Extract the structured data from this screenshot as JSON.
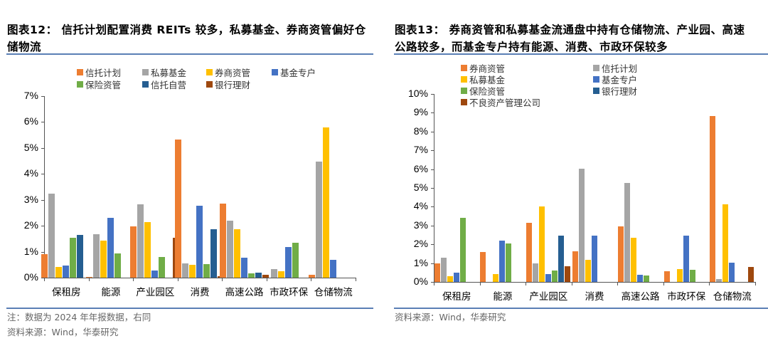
{
  "left": {
    "title_line1": "图表12： 信托计划配置消费 REITs 较多，私募基金、券商资管偏好仓",
    "title_line2": "储物流",
    "note": "注：数据为 2024 年年报数据，右同",
    "source": "资料来源：Wind，华泰研究"
  },
  "right": {
    "title_line1": "图表13： 券商资管和私募基金流通盘中持有仓储物流、产业园、高速",
    "title_line2": "公路较多，而基金专户持有能源、消费、市政环保较多",
    "source": "资料来源：Wind，华泰研究"
  },
  "colors": {
    "orange": "#ED7D31",
    "gray": "#A5A5A5",
    "yellow": "#FFC000",
    "blue": "#4472C4",
    "green": "#70AD47",
    "darkblue": "#255E91",
    "brown": "#9E480E",
    "rule": "#5A7FB5"
  },
  "chart_data": [
    {
      "type": "bar",
      "title": "图表12： 信托计划配置消费 REITs 较多，私募基金、券商资管偏好仓储物流",
      "xlabel": "",
      "ylabel": "",
      "ylim": [
        0,
        7
      ],
      "yticks": [
        "0%",
        "1%",
        "2%",
        "3%",
        "4%",
        "5%",
        "6%",
        "7%"
      ],
      "legend_position": "top",
      "categories": [
        "保租房",
        "能源",
        "产业园区",
        "消费",
        "高速公路",
        "市政环保",
        "仓储物流"
      ],
      "series": [
        {
          "name": "信托计划",
          "color": "#ED7D31",
          "values": [
            0.9,
            0.02,
            1.98,
            5.32,
            2.85,
            0.0,
            0.1
          ]
        },
        {
          "name": "私募基金",
          "color": "#A5A5A5",
          "values": [
            3.25,
            1.67,
            2.82,
            0.55,
            2.2,
            0.33,
            4.48
          ]
        },
        {
          "name": "券商资管",
          "color": "#FFC000",
          "values": [
            0.42,
            1.42,
            2.14,
            0.5,
            1.88,
            0.25,
            5.78
          ]
        },
        {
          "name": "基金专户",
          "color": "#4472C4",
          "values": [
            0.46,
            2.3,
            0.27,
            2.78,
            0.78,
            1.17,
            0.68
          ]
        },
        {
          "name": "保险资管",
          "color": "#70AD47",
          "values": [
            1.55,
            0.93,
            0.79,
            0.52,
            0.17,
            1.34,
            0.0
          ]
        },
        {
          "name": "信托自营",
          "color": "#255E91",
          "values": [
            1.64,
            0.0,
            0.0,
            1.86,
            0.2,
            0.0,
            0.0
          ]
        },
        {
          "name": "银行理财",
          "color": "#9E480E",
          "values": [
            0.0,
            0.0,
            1.55,
            0.05,
            0.12,
            0.0,
            0.0
          ]
        }
      ]
    },
    {
      "type": "bar",
      "title": "图表13： 券商资管和私募基金流通盘中持有仓储物流、产业园、高速公路较多，而基金专户持有能源、消费、市政环保较多",
      "xlabel": "",
      "ylabel": "",
      "ylim": [
        0,
        10
      ],
      "yticks": [
        "0%",
        "1%",
        "2%",
        "3%",
        "4%",
        "5%",
        "6%",
        "7%",
        "8%",
        "9%",
        "10%"
      ],
      "legend_position": "top",
      "categories": [
        "保租房",
        "能源",
        "产业园区",
        "消费",
        "高速公路",
        "市政环保",
        "仓储物流"
      ],
      "series": [
        {
          "name": "券商资管",
          "color": "#ED7D31",
          "values": [
            0.97,
            1.58,
            3.13,
            1.62,
            2.97,
            0.57,
            8.83
          ]
        },
        {
          "name": "信托计划",
          "color": "#A5A5A5",
          "values": [
            1.3,
            0.0,
            1.0,
            6.03,
            5.27,
            0.0,
            0.17
          ]
        },
        {
          "name": "私募基金",
          "color": "#FFC000",
          "values": [
            0.32,
            0.43,
            4.03,
            1.17,
            2.35,
            0.7,
            4.13
          ]
        },
        {
          "name": "基金专户",
          "color": "#4472C4",
          "values": [
            0.48,
            2.2,
            0.42,
            2.48,
            0.38,
            2.45,
            1.03
          ]
        },
        {
          "name": "保险资管",
          "color": "#70AD47",
          "values": [
            3.42,
            2.03,
            0.6,
            0.0,
            0.35,
            0.63,
            0.0
          ]
        },
        {
          "name": "银行理财",
          "color": "#255E91",
          "values": [
            0.0,
            0.0,
            2.46,
            0.0,
            0.0,
            0.0,
            0.0
          ]
        },
        {
          "name": "不良资产管理公司",
          "color": "#9E480E",
          "values": [
            0.0,
            0.0,
            0.82,
            0.0,
            0.0,
            0.0,
            0.78
          ]
        }
      ]
    }
  ]
}
